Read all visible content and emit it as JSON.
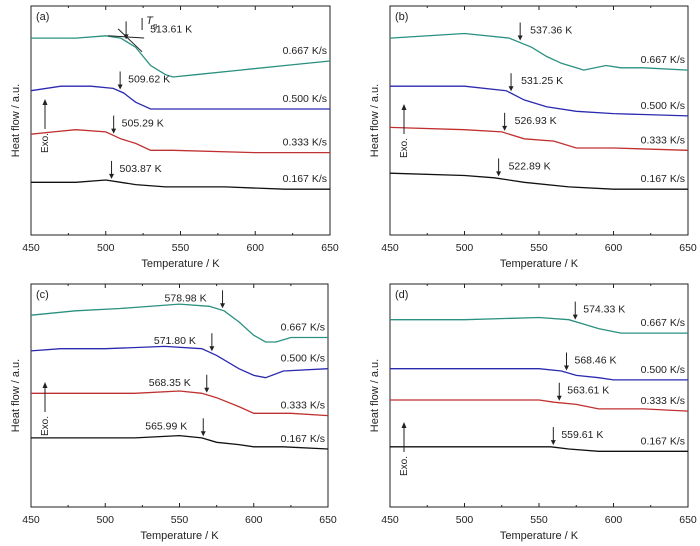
{
  "chart_data": [
    {
      "panel": "(a)",
      "type": "line",
      "xlabel": "Temperature / K",
      "ylabel": "Heat flow / a.u.",
      "xlim": [
        450,
        650
      ],
      "xticks": [
        "450",
        "500",
        "550",
        "600",
        "650"
      ],
      "exo_label": "Exo.",
      "tg_symbol": "T",
      "tg_subscript": "g",
      "series": [
        {
          "name": "0.667 K/s",
          "color": "#2a9080",
          "tg": 513.61,
          "tg_label": "513.61 K",
          "points": [
            [
              450,
              0.86
            ],
            [
              480,
              0.86
            ],
            [
              500,
              0.87
            ],
            [
              510,
              0.86
            ],
            [
              520,
              0.82
            ],
            [
              530,
              0.74
            ],
            [
              540,
              0.7
            ],
            [
              545,
              0.69
            ],
            [
              560,
              0.7
            ],
            [
              590,
              0.72
            ],
            [
              620,
              0.74
            ],
            [
              650,
              0.76
            ]
          ]
        },
        {
          "name": "0.500 K/s",
          "color": "#2a2ab0",
          "tg": 509.62,
          "tg_label": "509.62 K",
          "points": [
            [
              450,
              0.63
            ],
            [
              470,
              0.65
            ],
            [
              490,
              0.65
            ],
            [
              505,
              0.64
            ],
            [
              512,
              0.62
            ],
            [
              520,
              0.58
            ],
            [
              530,
              0.55
            ],
            [
              540,
              0.55
            ],
            [
              600,
              0.55
            ],
            [
              650,
              0.55
            ]
          ]
        },
        {
          "name": "0.333 K/s",
          "color": "#c03030",
          "tg": 505.29,
          "tg_label": "505.29 K",
          "points": [
            [
              450,
              0.44
            ],
            [
              465,
              0.45
            ],
            [
              480,
              0.46
            ],
            [
              500,
              0.45
            ],
            [
              510,
              0.42
            ],
            [
              520,
              0.4
            ],
            [
              530,
              0.37
            ],
            [
              545,
              0.37
            ],
            [
              600,
              0.36
            ],
            [
              650,
              0.36
            ]
          ]
        },
        {
          "name": "0.167 K/s",
          "color": "#111111",
          "tg": 503.87,
          "tg_label": "503.87 K",
          "points": [
            [
              450,
              0.23
            ],
            [
              480,
              0.23
            ],
            [
              500,
              0.24
            ],
            [
              510,
              0.23
            ],
            [
              520,
              0.22
            ],
            [
              540,
              0.21
            ],
            [
              580,
              0.21
            ],
            [
              620,
              0.2
            ],
            [
              650,
              0.2
            ]
          ]
        }
      ]
    },
    {
      "panel": "(b)",
      "type": "line",
      "xlabel": "Temperature / K",
      "ylabel": "Heat flow / a.u.",
      "xlim": [
        450,
        650
      ],
      "xticks": [
        "450",
        "500",
        "550",
        "600",
        "650"
      ],
      "exo_label": "Exo.",
      "series": [
        {
          "name": "0.667 K/s",
          "color": "#2a9080",
          "tg": 537.36,
          "tg_label": "537.36 K",
          "points": [
            [
              450,
              0.86
            ],
            [
              500,
              0.88
            ],
            [
              530,
              0.86
            ],
            [
              545,
              0.82
            ],
            [
              555,
              0.78
            ],
            [
              565,
              0.75
            ],
            [
              575,
              0.73
            ],
            [
              580,
              0.72
            ],
            [
              595,
              0.74
            ],
            [
              605,
              0.73
            ],
            [
              620,
              0.73
            ],
            [
              650,
              0.72
            ]
          ]
        },
        {
          "name": "0.500 K/s",
          "color": "#2a2ab0",
          "tg": 531.25,
          "tg_label": "531.25 K",
          "points": [
            [
              450,
              0.65
            ],
            [
              500,
              0.65
            ],
            [
              528,
              0.63
            ],
            [
              540,
              0.59
            ],
            [
              555,
              0.56
            ],
            [
              575,
              0.54
            ],
            [
              600,
              0.53
            ],
            [
              650,
              0.52
            ]
          ]
        },
        {
          "name": "0.333 K/s",
          "color": "#c03030",
          "tg": 526.93,
          "tg_label": "526.93 K",
          "points": [
            [
              450,
              0.47
            ],
            [
              500,
              0.46
            ],
            [
              525,
              0.45
            ],
            [
              540,
              0.42
            ],
            [
              560,
              0.41
            ],
            [
              575,
              0.38
            ],
            [
              600,
              0.38
            ],
            [
              650,
              0.37
            ]
          ]
        },
        {
          "name": "0.167 K/s",
          "color": "#111111",
          "tg": 522.89,
          "tg_label": "522.89 K",
          "points": [
            [
              450,
              0.27
            ],
            [
              500,
              0.26
            ],
            [
              520,
              0.25
            ],
            [
              540,
              0.23
            ],
            [
              570,
              0.21
            ],
            [
              600,
              0.2
            ],
            [
              650,
              0.2
            ]
          ]
        }
      ]
    },
    {
      "panel": "(c)",
      "type": "line",
      "xlabel": "Temperature / K",
      "ylabel": "Heat flow / a.u.",
      "xlim": [
        450,
        650
      ],
      "xticks": [
        "450",
        "500",
        "550",
        "600",
        "650"
      ],
      "exo_label": "Exo.",
      "series": [
        {
          "name": "0.667 K/s",
          "color": "#2a9080",
          "tg": 578.98,
          "tg_label": "578.98 K",
          "points": [
            [
              450,
              0.86
            ],
            [
              480,
              0.88
            ],
            [
              510,
              0.89
            ],
            [
              550,
              0.91
            ],
            [
              570,
              0.9
            ],
            [
              580,
              0.88
            ],
            [
              590,
              0.83
            ],
            [
              600,
              0.77
            ],
            [
              608,
              0.74
            ],
            [
              615,
              0.74
            ],
            [
              625,
              0.76
            ],
            [
              650,
              0.76
            ]
          ]
        },
        {
          "name": "0.500 K/s",
          "color": "#2a2ab0",
          "tg": 571.8,
          "tg_label": "571.80 K",
          "points": [
            [
              450,
              0.7
            ],
            [
              470,
              0.71
            ],
            [
              500,
              0.71
            ],
            [
              540,
              0.72
            ],
            [
              565,
              0.71
            ],
            [
              575,
              0.68
            ],
            [
              590,
              0.62
            ],
            [
              600,
              0.59
            ],
            [
              608,
              0.58
            ],
            [
              620,
              0.61
            ],
            [
              650,
              0.62
            ]
          ]
        },
        {
          "name": "0.333 K/s",
          "color": "#c03030",
          "tg": 568.35,
          "tg_label": "568.35 K",
          "points": [
            [
              450,
              0.51
            ],
            [
              480,
              0.51
            ],
            [
              520,
              0.51
            ],
            [
              550,
              0.52
            ],
            [
              565,
              0.51
            ],
            [
              575,
              0.49
            ],
            [
              590,
              0.45
            ],
            [
              600,
              0.42
            ],
            [
              610,
              0.42
            ],
            [
              625,
              0.42
            ],
            [
              650,
              0.41
            ]
          ]
        },
        {
          "name": "0.167 K/s",
          "color": "#111111",
          "tg": 565.99,
          "tg_label": "565.99 K",
          "points": [
            [
              450,
              0.31
            ],
            [
              480,
              0.31
            ],
            [
              520,
              0.31
            ],
            [
              550,
              0.32
            ],
            [
              565,
              0.31
            ],
            [
              575,
              0.29
            ],
            [
              590,
              0.28
            ],
            [
              600,
              0.27
            ],
            [
              620,
              0.27
            ],
            [
              650,
              0.26
            ]
          ]
        }
      ]
    },
    {
      "panel": "(d)",
      "type": "line",
      "xlabel": "Temperature / K",
      "ylabel": "Heat flow / a.u.",
      "xlim": [
        450,
        650
      ],
      "xticks": [
        "450",
        "500",
        "550",
        "600",
        "650"
      ],
      "exo_label": "Exo.",
      "series": [
        {
          "name": "0.667 K/s",
          "color": "#2a9080",
          "tg": 574.33,
          "tg_label": "574.33 K",
          "points": [
            [
              450,
              0.84
            ],
            [
              500,
              0.84
            ],
            [
              550,
              0.85
            ],
            [
              570,
              0.84
            ],
            [
              580,
              0.82
            ],
            [
              590,
              0.8
            ],
            [
              605,
              0.78
            ],
            [
              620,
              0.78
            ],
            [
              650,
              0.78
            ]
          ]
        },
        {
          "name": "0.500 K/s",
          "color": "#2a2ab0",
          "tg": 568.46,
          "tg_label": "568.46 K",
          "points": [
            [
              450,
              0.62
            ],
            [
              500,
              0.62
            ],
            [
              550,
              0.62
            ],
            [
              565,
              0.61
            ],
            [
              575,
              0.59
            ],
            [
              590,
              0.58
            ],
            [
              600,
              0.57
            ],
            [
              650,
              0.57
            ]
          ]
        },
        {
          "name": "0.333 K/s",
          "color": "#c03030",
          "tg": 563.61,
          "tg_label": "563.61 K",
          "points": [
            [
              450,
              0.48
            ],
            [
              500,
              0.48
            ],
            [
              550,
              0.48
            ],
            [
              560,
              0.47
            ],
            [
              575,
              0.46
            ],
            [
              590,
              0.44
            ],
            [
              620,
              0.44
            ],
            [
              650,
              0.43
            ]
          ]
        },
        {
          "name": "0.167 K/s",
          "color": "#111111",
          "tg": 559.61,
          "tg_label": "559.61 K",
          "points": [
            [
              450,
              0.27
            ],
            [
              500,
              0.27
            ],
            [
              550,
              0.27
            ],
            [
              558,
              0.27
            ],
            [
              570,
              0.26
            ],
            [
              590,
              0.25
            ],
            [
              620,
              0.25
            ],
            [
              650,
              0.25
            ]
          ]
        }
      ]
    }
  ]
}
